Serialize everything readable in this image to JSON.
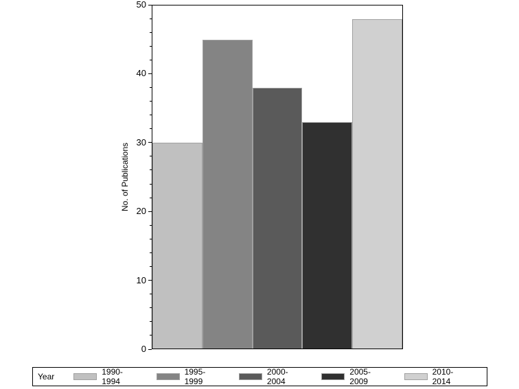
{
  "chart_data": {
    "type": "bar",
    "title": "",
    "xlabel": "",
    "ylabel": "No. of Publications",
    "ylim": [
      0,
      50
    ],
    "yticks": [
      0,
      10,
      20,
      30,
      40,
      50
    ],
    "grid": false,
    "legend_position": "bottom",
    "legend_title": "Year",
    "categories": [
      "1990-1994",
      "1995-1999",
      "2000-2004",
      "2005-2009",
      "2010-2014"
    ],
    "values": [
      30,
      45,
      38,
      33,
      48
    ],
    "colors": [
      "#c0c0c0",
      "#848484",
      "#5a5a5a",
      "#303030",
      "#d0d0d0"
    ]
  },
  "axis": {
    "ylabel": "No. of Publications",
    "ticks": [
      "0",
      "10",
      "20",
      "30",
      "40",
      "50"
    ]
  },
  "legend": {
    "title": "Year",
    "items": [
      {
        "label": "1990-1994",
        "color": "#c0c0c0"
      },
      {
        "label": "1995-1999",
        "color": "#848484"
      },
      {
        "label": "2000-2004",
        "color": "#5a5a5a"
      },
      {
        "label": "2005-2009",
        "color": "#303030"
      },
      {
        "label": "2010-2014",
        "color": "#d0d0d0"
      }
    ]
  }
}
